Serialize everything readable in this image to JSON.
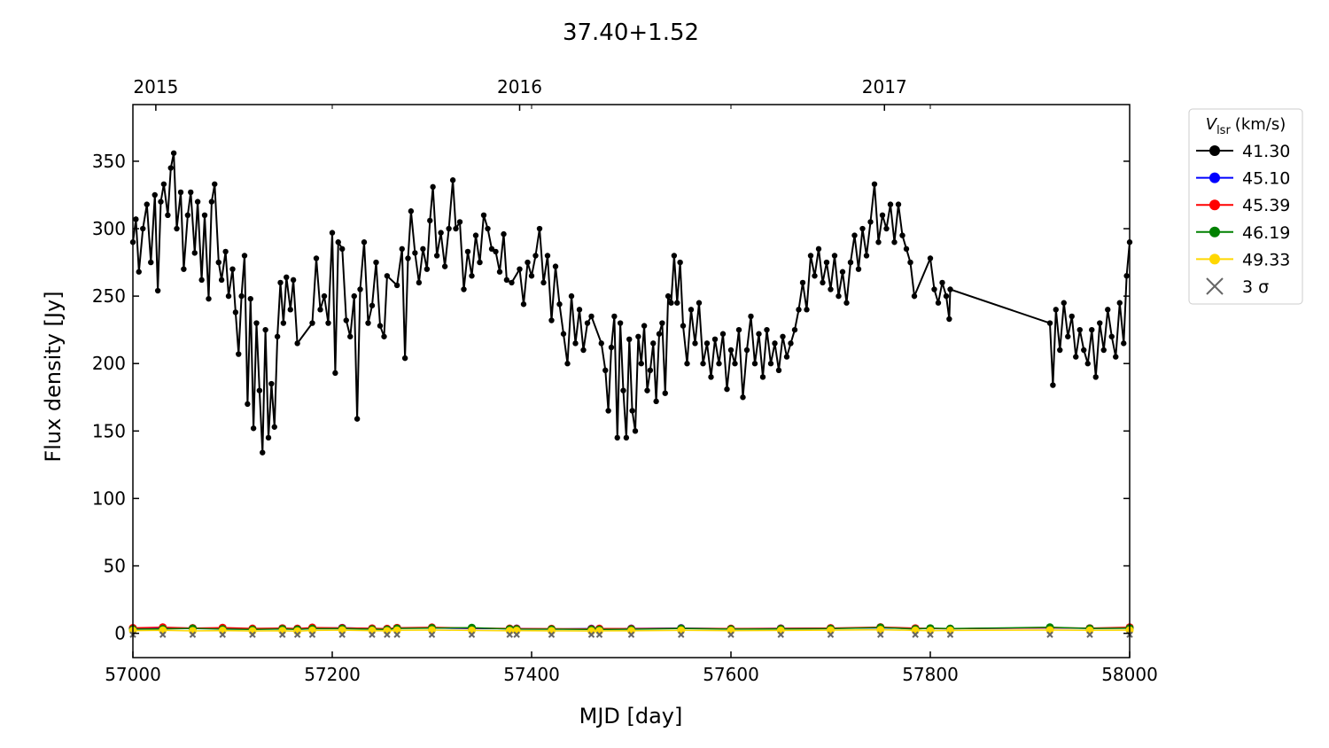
{
  "chart_data": {
    "type": "line",
    "title": "37.40+1.52",
    "xlabel": "MJD [day]",
    "ylabel": "Flux density [Jy]",
    "legend_title": {
      "symbol": "V",
      "subscript": "lsr",
      "unit": "(km/s)"
    },
    "legend": "outside-upper-right",
    "xlim": [
      57000,
      58000
    ],
    "xticks": [
      57000,
      57200,
      57400,
      57600,
      57800,
      58000
    ],
    "ylim": [
      -18,
      392
    ],
    "yticks": [
      0,
      50,
      100,
      150,
      200,
      250,
      300,
      350
    ],
    "x2ticks": [
      {
        "value": 57023,
        "label": "2015"
      },
      {
        "value": 57388,
        "label": "2016"
      },
      {
        "value": 57754,
        "label": "2017"
      }
    ],
    "series": [
      {
        "name": "45.10",
        "color": "#0000ff",
        "marker": "o",
        "x": [
          57000,
          57030,
          57060,
          57090,
          57120,
          57150,
          57165,
          57180,
          57210,
          57240,
          57255,
          57265,
          57300,
          57340,
          57378,
          57385,
          57420,
          57460,
          57468,
          57500,
          57550,
          57600,
          57650,
          57700,
          57750,
          57785,
          57800,
          57820,
          57920,
          57960,
          58000
        ],
        "values": [
          3.5,
          4,
          3.8,
          3.6,
          3.2,
          3.7,
          3.4,
          3.9,
          4.1,
          3.6,
          3.3,
          3.8,
          4,
          3.5,
          3.4,
          3.6,
          3.2,
          3.5,
          3.3,
          3.6,
          3.9,
          3.4,
          3.7,
          3.8,
          4,
          3.6,
          3.5,
          3.4,
          4,
          3.7,
          3.9
        ]
      },
      {
        "name": "45.39",
        "color": "#ff0000",
        "marker": "o",
        "x": [
          57000,
          57030,
          57060,
          57090,
          57120,
          57150,
          57165,
          57180,
          57210,
          57240,
          57255,
          57265,
          57300,
          57340,
          57378,
          57385,
          57420,
          57460,
          57468,
          57500,
          57550,
          57600,
          57650,
          57700,
          57750,
          57785,
          57800,
          57820,
          57920,
          57960,
          58000
        ],
        "values": [
          4,
          4.5,
          3.9,
          4.2,
          3.6,
          3.8,
          3.5,
          4.3,
          4,
          3.7,
          3.4,
          4.1,
          4.4,
          3.9,
          3.6,
          3.5,
          3.4,
          3.3,
          3.5,
          3.4,
          3.7,
          3.5,
          3.6,
          3.9,
          4.6,
          3.8,
          3.6,
          3.4,
          4.1,
          3.8,
          4.5
        ]
      },
      {
        "name": "46.19",
        "color": "#008000",
        "marker": "o",
        "x": [
          57000,
          57030,
          57060,
          57090,
          57120,
          57150,
          57165,
          57180,
          57210,
          57240,
          57255,
          57265,
          57300,
          57340,
          57378,
          57385,
          57420,
          57460,
          57468,
          57500,
          57550,
          57600,
          57650,
          57700,
          57750,
          57785,
          57800,
          57820,
          57920,
          57960,
          58000
        ],
        "values": [
          3,
          3.3,
          3.6,
          3.1,
          2.8,
          3.2,
          2.9,
          3.4,
          3.5,
          3,
          2.8,
          3.6,
          3.9,
          4.2,
          3.2,
          3.1,
          3,
          2.9,
          2.8,
          3,
          3.6,
          3.1,
          3.3,
          3.4,
          4.3,
          3.2,
          3.8,
          3.5,
          4.5,
          3.6,
          3.8
        ]
      },
      {
        "name": "49.33",
        "color": "#ffd700",
        "marker": "o",
        "x": [
          57000,
          57030,
          57060,
          57090,
          57120,
          57150,
          57165,
          57180,
          57210,
          57240,
          57255,
          57265,
          57300,
          57340,
          57378,
          57385,
          57420,
          57460,
          57468,
          57500,
          57550,
          57600,
          57650,
          57700,
          57750,
          57785,
          57800,
          57820,
          57920,
          57960,
          58000
        ],
        "values": [
          2,
          2.2,
          1.8,
          2,
          1.7,
          1.9,
          1.6,
          2.1,
          2.3,
          2,
          1.8,
          2.2,
          2.4,
          2.1,
          1.9,
          2,
          1.8,
          1.7,
          1.8,
          1.9,
          2.2,
          2,
          2.1,
          2.3,
          2.6,
          2.1,
          2,
          2.1,
          2.4,
          2.2,
          2.3
        ]
      },
      {
        "name": "3 σ",
        "color": "#666666",
        "marker": "x",
        "x": [
          57000,
          57030,
          57060,
          57090,
          57120,
          57150,
          57165,
          57180,
          57210,
          57240,
          57255,
          57265,
          57300,
          57340,
          57378,
          57385,
          57420,
          57460,
          57468,
          57500,
          57550,
          57600,
          57650,
          57700,
          57750,
          57785,
          57800,
          57820,
          57920,
          57960,
          58000
        ],
        "values": [
          -1,
          -1,
          -1,
          -1,
          -1,
          -1,
          -1,
          -1,
          -1,
          -1,
          -1,
          -1,
          -1,
          -1,
          -1,
          -1,
          -1,
          -1,
          -1,
          -1,
          -1,
          -1,
          -1,
          -1,
          -1,
          -1,
          -1,
          -1,
          -1,
          -1,
          -1
        ]
      },
      {
        "name": "41.30",
        "color": "#000000",
        "marker": "o",
        "x": [
          57000,
          57003,
          57006,
          57010,
          57014,
          57018,
          57022,
          57025,
          57028,
          57031,
          57035,
          57038,
          57041,
          57044,
          57048,
          57051,
          57055,
          57058,
          57062,
          57065,
          57069,
          57072,
          57076,
          57079,
          57082,
          57086,
          57089,
          57093,
          57096,
          57100,
          57103,
          57106,
          57109,
          57112,
          57115,
          57118,
          57121,
          57124,
          57127,
          57130,
          57133,
          57136,
          57139,
          57142,
          57145,
          57148,
          57151,
          57154,
          57158,
          57161,
          57165,
          57180,
          57184,
          57188,
          57192,
          57196,
          57200,
          57203,
          57206,
          57210,
          57214,
          57218,
          57222,
          57225,
          57228,
          57232,
          57236,
          57240,
          57244,
          57248,
          57252,
          57255,
          57265,
          57270,
          57273,
          57276,
          57279,
          57283,
          57287,
          57291,
          57295,
          57298,
          57301,
          57305,
          57309,
          57313,
          57317,
          57321,
          57324,
          57328,
          57332,
          57336,
          57340,
          57344,
          57348,
          57352,
          57356,
          57360,
          57364,
          57368,
          57372,
          57375,
          57380,
          57388,
          57392,
          57396,
          57400,
          57404,
          57408,
          57412,
          57416,
          57420,
          57424,
          57428,
          57432,
          57436,
          57440,
          57444,
          57448,
          57452,
          57456,
          57460,
          57470,
          57474,
          57477,
          57480,
          57483,
          57486,
          57489,
          57492,
          57495,
          57498,
          57501,
          57504,
          57507,
          57510,
          57513,
          57516,
          57519,
          57522,
          57525,
          57528,
          57531,
          57534,
          57537,
          57540,
          57543,
          57546,
          57549,
          57552,
          57556,
          57560,
          57564,
          57568,
          57572,
          57576,
          57580,
          57584,
          57588,
          57592,
          57596,
          57600,
          57604,
          57608,
          57612,
          57616,
          57620,
          57624,
          57628,
          57632,
          57636,
          57640,
          57644,
          57648,
          57652,
          57656,
          57660,
          57664,
          57668,
          57672,
          57676,
          57680,
          57684,
          57688,
          57692,
          57696,
          57700,
          57704,
          57708,
          57712,
          57716,
          57720,
          57724,
          57728,
          57732,
          57736,
          57740,
          57744,
          57748,
          57752,
          57756,
          57760,
          57764,
          57768,
          57772,
          57776,
          57780,
          57784,
          57800,
          57804,
          57808,
          57812,
          57816,
          57819,
          57820,
          57920,
          57923,
          57926,
          57930,
          57934,
          57938,
          57942,
          57946,
          57950,
          57954,
          57958,
          57962,
          57966,
          57970,
          57974,
          57978,
          57982,
          57986,
          57990,
          57994,
          57997,
          58000
        ],
        "values": [
          290,
          307,
          268,
          300,
          318,
          275,
          325,
          254,
          320,
          333,
          310,
          345,
          356,
          300,
          327,
          270,
          310,
          327,
          282,
          320,
          262,
          310,
          248,
          320,
          333,
          275,
          262,
          283,
          250,
          270,
          238,
          207,
          250,
          280,
          170,
          248,
          152,
          230,
          180,
          134,
          225,
          145,
          185,
          153,
          220,
          260,
          230,
          264,
          240,
          262,
          215,
          230,
          278,
          240,
          250,
          230,
          297,
          193,
          290,
          285,
          232,
          220,
          250,
          159,
          255,
          290,
          230,
          243,
          275,
          228,
          220,
          265,
          258,
          285,
          204,
          278,
          313,
          282,
          260,
          285,
          270,
          306,
          331,
          280,
          297,
          272,
          300,
          336,
          300,
          305,
          255,
          283,
          265,
          295,
          275,
          310,
          300,
          285,
          283,
          268,
          296,
          262,
          260,
          270,
          244,
          275,
          265,
          280,
          300,
          260,
          280,
          232,
          272,
          244,
          222,
          200,
          250,
          215,
          240,
          210,
          230,
          235,
          215,
          195,
          165,
          212,
          235,
          145,
          230,
          180,
          145,
          218,
          165,
          150,
          220,
          200,
          228,
          180,
          195,
          215,
          172,
          222,
          230,
          178,
          250,
          245,
          280,
          245,
          275,
          228,
          200,
          240,
          215,
          245,
          200,
          215,
          190,
          218,
          200,
          222,
          181,
          210,
          200,
          225,
          175,
          210,
          235,
          200,
          222,
          190,
          225,
          200,
          215,
          195,
          220,
          205,
          215,
          225,
          240,
          260,
          240,
          280,
          265,
          285,
          260,
          275,
          255,
          280,
          250,
          268,
          245,
          275,
          295,
          270,
          300,
          280,
          305,
          333,
          290,
          310,
          300,
          318,
          290,
          318,
          295,
          285,
          275,
          250,
          278,
          255,
          245,
          260,
          250,
          233,
          255,
          230,
          184,
          240,
          210,
          245,
          220,
          235,
          205,
          225,
          210,
          200,
          225,
          190,
          230,
          210,
          240,
          220,
          205,
          245,
          215,
          265,
          290
        ]
      }
    ]
  }
}
